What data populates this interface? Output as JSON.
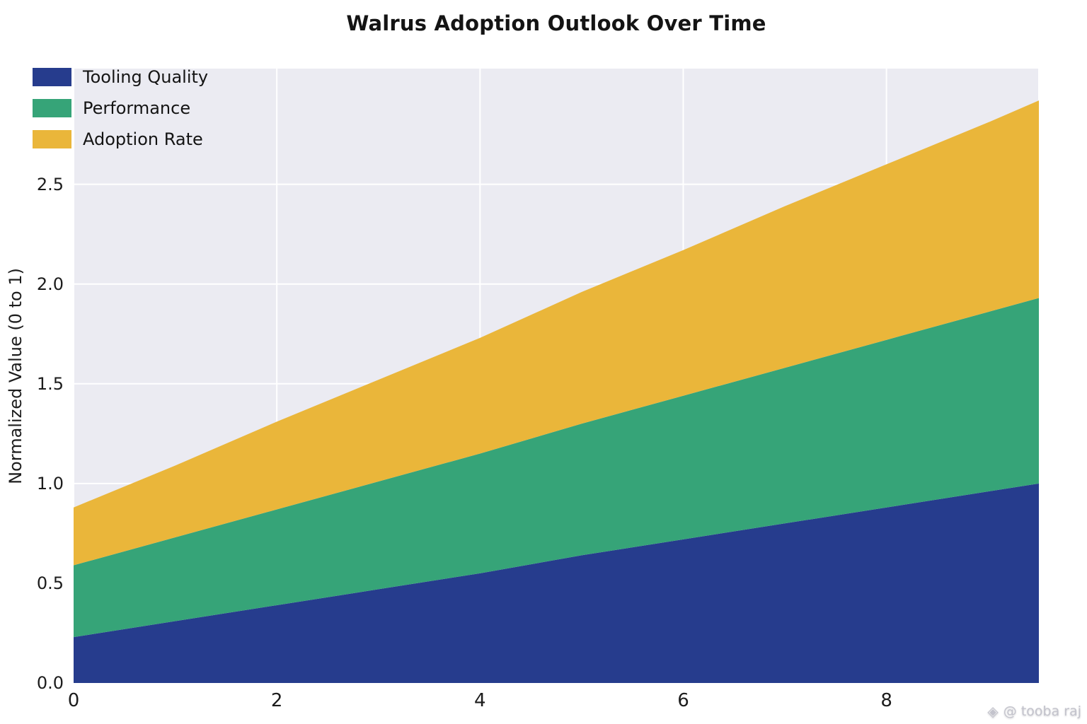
{
  "chart_data": {
    "type": "area",
    "stacked": true,
    "title": "Walrus Adoption Outlook Over Time",
    "xlabel": "",
    "ylabel": "Normalized Value (0 to 1)",
    "x": [
      0,
      1,
      2,
      3,
      4,
      5,
      6,
      7,
      8,
      9,
      9.5
    ],
    "series": [
      {
        "name": "Tooling Quality",
        "color": "#263c8d",
        "values": [
          0.23,
          0.31,
          0.39,
          0.47,
          0.55,
          0.64,
          0.72,
          0.8,
          0.88,
          0.96,
          1.0
        ]
      },
      {
        "name": "Performance",
        "color": "#36a478",
        "values": [
          0.36,
          0.42,
          0.48,
          0.54,
          0.6,
          0.66,
          0.72,
          0.78,
          0.84,
          0.9,
          0.93
        ]
      },
      {
        "name": "Adoption Rate",
        "color": "#eab63a",
        "values": [
          0.29,
          0.36,
          0.44,
          0.51,
          0.58,
          0.66,
          0.73,
          0.81,
          0.88,
          0.95,
          0.99
        ]
      }
    ],
    "xlim": [
      0,
      9.5
    ],
    "ylim": [
      0,
      3.08
    ],
    "xtick_values": [
      0,
      2,
      4,
      6,
      8
    ],
    "xtick_labels": [
      "0",
      "2",
      "4",
      "6",
      "8"
    ],
    "ytick_values": [
      0,
      0.5,
      1,
      1.5,
      2,
      2.5
    ],
    "ytick_labels": [
      "0.0",
      "0.5",
      "1.0",
      "1.5",
      "2.0",
      "2.5"
    ],
    "grid": true,
    "grid_color": "#ffffff",
    "background_color": "#ebebf2",
    "legend_position": "upper left"
  },
  "watermark": {
    "icon_glyph": "◈",
    "text": "@ tooba raj"
  }
}
